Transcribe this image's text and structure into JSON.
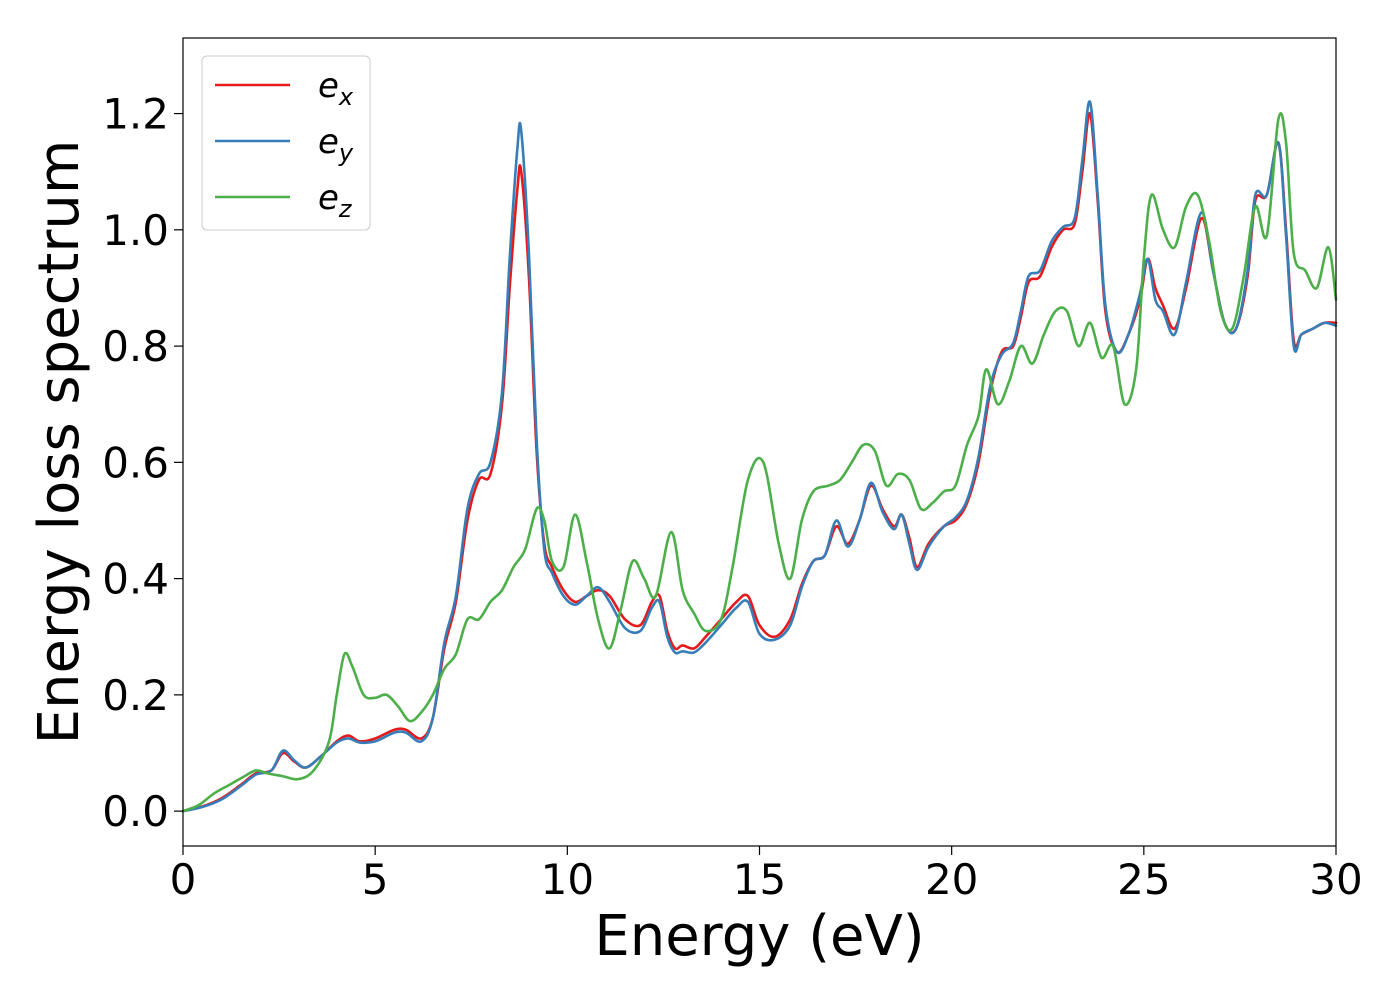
{
  "chart_data": {
    "type": "line",
    "xlabel": "Energy (eV)",
    "ylabel": "Energy loss spectrum",
    "xlim": [
      0,
      30
    ],
    "ylim": [
      -0.06,
      1.33
    ],
    "xticks": [
      0,
      5,
      10,
      15,
      20,
      25,
      30
    ],
    "yticks": [
      0.0,
      0.2,
      0.4,
      0.6,
      0.8,
      1.0,
      1.2
    ],
    "xtick_labels": [
      "0",
      "5",
      "10",
      "15",
      "20",
      "25",
      "30"
    ],
    "ytick_labels": [
      "0.0",
      "0.2",
      "0.4",
      "0.6",
      "0.8",
      "1.0",
      "1.2"
    ],
    "grid": false,
    "legend_position": "top-left",
    "series": [
      {
        "name": "e_x",
        "label_base": "e",
        "label_sub": "x",
        "color": "#e41a1c",
        "x": [
          0,
          0.5,
          1.0,
          1.5,
          1.9,
          2.3,
          2.6,
          2.9,
          3.2,
          3.6,
          4.0,
          4.3,
          4.6,
          5.0,
          5.5,
          5.8,
          6.2,
          6.5,
          6.8,
          7.1,
          7.4,
          7.7,
          8.0,
          8.3,
          8.5,
          8.7,
          8.8,
          9.0,
          9.2,
          9.4,
          9.6,
          9.9,
          10.2,
          10.5,
          10.8,
          11.1,
          11.5,
          11.9,
          12.2,
          12.4,
          12.6,
          12.8,
          13.0,
          13.3,
          13.6,
          14.0,
          14.4,
          14.7,
          15.0,
          15.4,
          15.8,
          16.1,
          16.4,
          16.7,
          17.0,
          17.3,
          17.6,
          17.9,
          18.2,
          18.5,
          18.7,
          18.9,
          19.1,
          19.4,
          19.8,
          20.1,
          20.4,
          20.7,
          21.0,
          21.3,
          21.6,
          21.8,
          22.0,
          22.3,
          22.6,
          22.9,
          23.2,
          23.4,
          23.6,
          23.8,
          24.0,
          24.3,
          24.6,
          24.9,
          25.1,
          25.3,
          25.5,
          25.8,
          26.1,
          26.5,
          26.8,
          27.1,
          27.4,
          27.7,
          27.9,
          28.2,
          28.5,
          28.7,
          28.9,
          29.1,
          29.4,
          29.7,
          30.0
        ],
        "y": [
          0.0,
          0.008,
          0.022,
          0.045,
          0.065,
          0.07,
          0.1,
          0.085,
          0.075,
          0.095,
          0.12,
          0.13,
          0.12,
          0.125,
          0.14,
          0.14,
          0.125,
          0.16,
          0.28,
          0.36,
          0.5,
          0.57,
          0.58,
          0.7,
          0.9,
          1.07,
          1.1,
          0.92,
          0.62,
          0.46,
          0.42,
          0.38,
          0.36,
          0.37,
          0.38,
          0.37,
          0.33,
          0.32,
          0.36,
          0.37,
          0.31,
          0.28,
          0.285,
          0.28,
          0.3,
          0.33,
          0.36,
          0.37,
          0.32,
          0.3,
          0.33,
          0.39,
          0.43,
          0.44,
          0.49,
          0.46,
          0.5,
          0.56,
          0.52,
          0.49,
          0.51,
          0.47,
          0.42,
          0.46,
          0.49,
          0.5,
          0.53,
          0.6,
          0.72,
          0.79,
          0.8,
          0.85,
          0.91,
          0.92,
          0.97,
          1.0,
          1.01,
          1.1,
          1.2,
          1.05,
          0.86,
          0.79,
          0.82,
          0.88,
          0.95,
          0.9,
          0.87,
          0.83,
          0.9,
          1.02,
          0.93,
          0.84,
          0.83,
          0.92,
          1.05,
          1.06,
          1.15,
          1.0,
          0.81,
          0.82,
          0.83,
          0.84,
          0.84
        ]
      },
      {
        "name": "e_y",
        "label_base": "e",
        "label_sub": "y",
        "color": "#377eb8",
        "x": [
          0,
          0.5,
          1.0,
          1.5,
          1.9,
          2.3,
          2.6,
          2.9,
          3.2,
          3.6,
          4.0,
          4.3,
          4.6,
          5.0,
          5.5,
          5.8,
          6.2,
          6.5,
          6.8,
          7.1,
          7.4,
          7.7,
          8.0,
          8.3,
          8.5,
          8.7,
          8.8,
          9.0,
          9.2,
          9.4,
          9.6,
          9.9,
          10.2,
          10.5,
          10.8,
          11.1,
          11.5,
          11.9,
          12.2,
          12.4,
          12.6,
          12.8,
          13.0,
          13.3,
          13.6,
          14.0,
          14.4,
          14.7,
          15.0,
          15.4,
          15.8,
          16.1,
          16.4,
          16.7,
          17.0,
          17.3,
          17.6,
          17.9,
          18.2,
          18.5,
          18.7,
          18.9,
          19.1,
          19.4,
          19.8,
          20.1,
          20.4,
          20.7,
          21.0,
          21.3,
          21.6,
          21.8,
          22.0,
          22.3,
          22.6,
          22.9,
          23.2,
          23.4,
          23.6,
          23.8,
          24.0,
          24.3,
          24.6,
          24.9,
          25.1,
          25.3,
          25.5,
          25.8,
          26.1,
          26.5,
          26.8,
          27.1,
          27.4,
          27.7,
          27.9,
          28.2,
          28.5,
          28.7,
          28.9,
          29.1,
          29.4,
          29.7,
          30.0
        ],
        "y": [
          0.0,
          0.007,
          0.02,
          0.043,
          0.063,
          0.07,
          0.104,
          0.087,
          0.075,
          0.095,
          0.118,
          0.125,
          0.118,
          0.12,
          0.135,
          0.135,
          0.12,
          0.16,
          0.29,
          0.37,
          0.52,
          0.58,
          0.6,
          0.72,
          0.95,
          1.14,
          1.17,
          0.96,
          0.64,
          0.45,
          0.41,
          0.37,
          0.355,
          0.37,
          0.385,
          0.36,
          0.315,
          0.31,
          0.35,
          0.36,
          0.3,
          0.273,
          0.275,
          0.273,
          0.29,
          0.32,
          0.35,
          0.36,
          0.305,
          0.295,
          0.32,
          0.385,
          0.43,
          0.44,
          0.5,
          0.455,
          0.5,
          0.565,
          0.515,
          0.485,
          0.51,
          0.46,
          0.415,
          0.455,
          0.49,
          0.505,
          0.535,
          0.61,
          0.73,
          0.785,
          0.805,
          0.86,
          0.92,
          0.93,
          0.98,
          1.005,
          1.02,
          1.12,
          1.22,
          1.06,
          0.87,
          0.79,
          0.82,
          0.89,
          0.95,
          0.88,
          0.86,
          0.82,
          0.91,
          1.03,
          0.93,
          0.84,
          0.83,
          0.93,
          1.06,
          1.06,
          1.15,
          0.99,
          0.8,
          0.82,
          0.83,
          0.84,
          0.835
        ]
      },
      {
        "name": "e_z",
        "label_base": "e",
        "label_sub": "z",
        "color": "#4daf4a",
        "x": [
          0,
          0.4,
          0.8,
          1.2,
          1.6,
          1.9,
          2.2,
          2.6,
          3.0,
          3.4,
          3.8,
          4.0,
          4.2,
          4.4,
          4.7,
          5.0,
          5.3,
          5.6,
          5.9,
          6.2,
          6.5,
          6.8,
          7.1,
          7.4,
          7.7,
          8.0,
          8.3,
          8.6,
          8.9,
          9.2,
          9.4,
          9.6,
          9.9,
          10.2,
          10.5,
          10.8,
          11.1,
          11.4,
          11.7,
          12.0,
          12.3,
          12.7,
          13.0,
          13.3,
          13.6,
          14.0,
          14.3,
          14.7,
          15.1,
          15.5,
          15.8,
          16.1,
          16.4,
          16.8,
          17.1,
          17.4,
          17.7,
          18.0,
          18.3,
          18.6,
          18.9,
          19.2,
          19.5,
          19.8,
          20.1,
          20.4,
          20.7,
          20.9,
          21.2,
          21.5,
          21.8,
          22.1,
          22.4,
          22.7,
          23.0,
          23.3,
          23.6,
          23.9,
          24.2,
          24.5,
          24.8,
          25.0,
          25.2,
          25.5,
          25.8,
          26.1,
          26.4,
          26.7,
          27.0,
          27.3,
          27.6,
          27.9,
          28.2,
          28.5,
          28.7,
          28.9,
          29.2,
          29.5,
          29.8,
          30.0
        ],
        "y": [
          0.0,
          0.01,
          0.03,
          0.045,
          0.06,
          0.07,
          0.065,
          0.06,
          0.055,
          0.07,
          0.12,
          0.2,
          0.27,
          0.25,
          0.2,
          0.195,
          0.2,
          0.18,
          0.155,
          0.17,
          0.2,
          0.245,
          0.27,
          0.33,
          0.33,
          0.36,
          0.38,
          0.42,
          0.45,
          0.52,
          0.5,
          0.43,
          0.42,
          0.51,
          0.43,
          0.33,
          0.28,
          0.35,
          0.43,
          0.4,
          0.37,
          0.48,
          0.38,
          0.34,
          0.31,
          0.33,
          0.42,
          0.57,
          0.6,
          0.46,
          0.4,
          0.5,
          0.55,
          0.56,
          0.57,
          0.6,
          0.63,
          0.62,
          0.56,
          0.58,
          0.57,
          0.52,
          0.53,
          0.55,
          0.56,
          0.63,
          0.68,
          0.76,
          0.7,
          0.74,
          0.8,
          0.77,
          0.82,
          0.86,
          0.86,
          0.8,
          0.84,
          0.78,
          0.8,
          0.7,
          0.76,
          0.95,
          1.06,
          1.0,
          0.97,
          1.04,
          1.06,
          0.98,
          0.86,
          0.83,
          0.92,
          1.04,
          0.99,
          1.19,
          1.15,
          0.96,
          0.93,
          0.9,
          0.97,
          0.88
        ]
      }
    ]
  }
}
